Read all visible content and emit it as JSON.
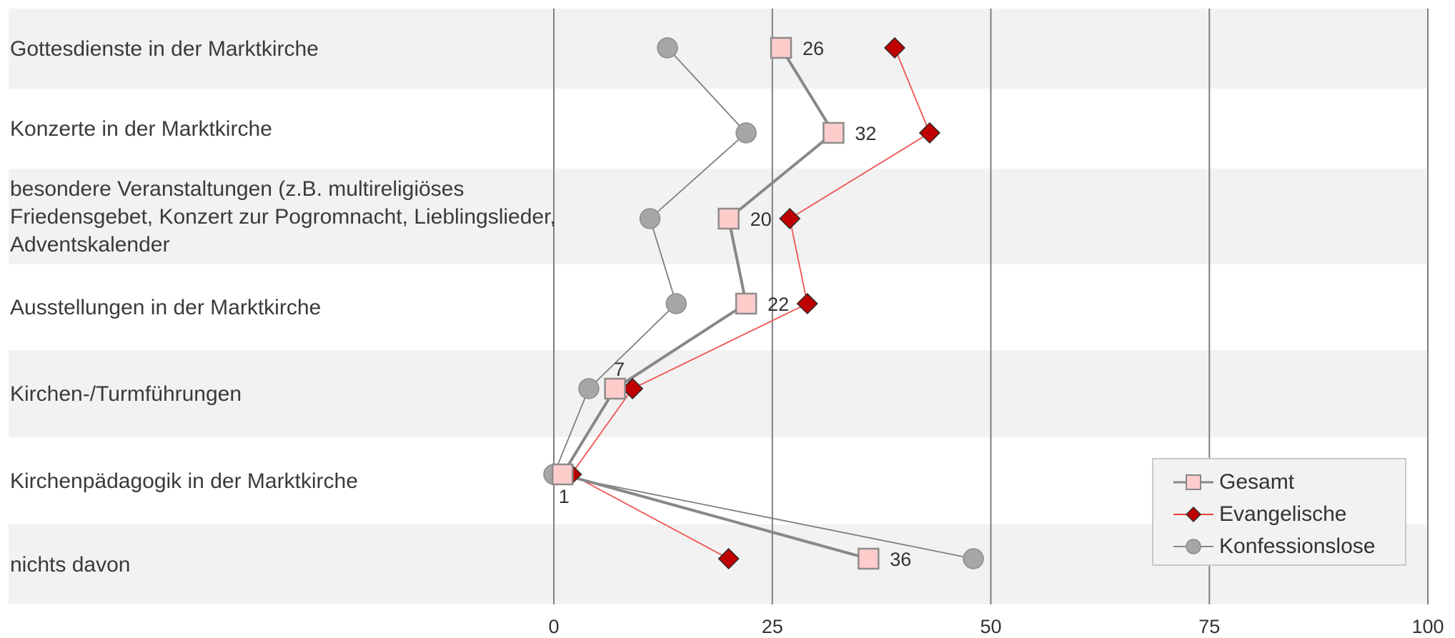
{
  "chart_data": {
    "type": "line",
    "orientation": "horizontal",
    "categories": [
      "Gottesdienste in der Marktkirche",
      "Konzerte in der Marktkirche",
      "besondere Veranstaltungen (z.B. multireligiöses Friedensgebet, Konzert zur Pogromnacht, Lieblingslieder, Adventskalender",
      "Ausstellungen in der Marktkirche",
      "Kirchen-/Turmführungen",
      "Kirchenpädagogik in der Marktkirche",
      "nichts davon"
    ],
    "series": [
      {
        "name": "Gesamt",
        "color": "#888888",
        "marker": "square",
        "values": [
          26,
          32,
          20,
          22,
          7,
          1,
          36
        ],
        "data_labels": [
          "26",
          "32",
          "20",
          "22",
          "7",
          "1",
          "36"
        ]
      },
      {
        "name": "Evangelische",
        "color": "#e8403a",
        "marker": "diamond",
        "values": [
          39,
          43,
          27,
          29,
          9,
          2,
          20
        ]
      },
      {
        "name": "Konfessionslose",
        "color": "#888888",
        "marker": "circle",
        "values": [
          13,
          22,
          11,
          14,
          4,
          0,
          48
        ]
      }
    ],
    "xlim": [
      0,
      100
    ],
    "xticks": [
      "0",
      "25",
      "50",
      "75",
      "100"
    ],
    "grid": "vertical",
    "legend_position": "bottom-right",
    "title": "",
    "xlabel": "",
    "ylabel": ""
  }
}
